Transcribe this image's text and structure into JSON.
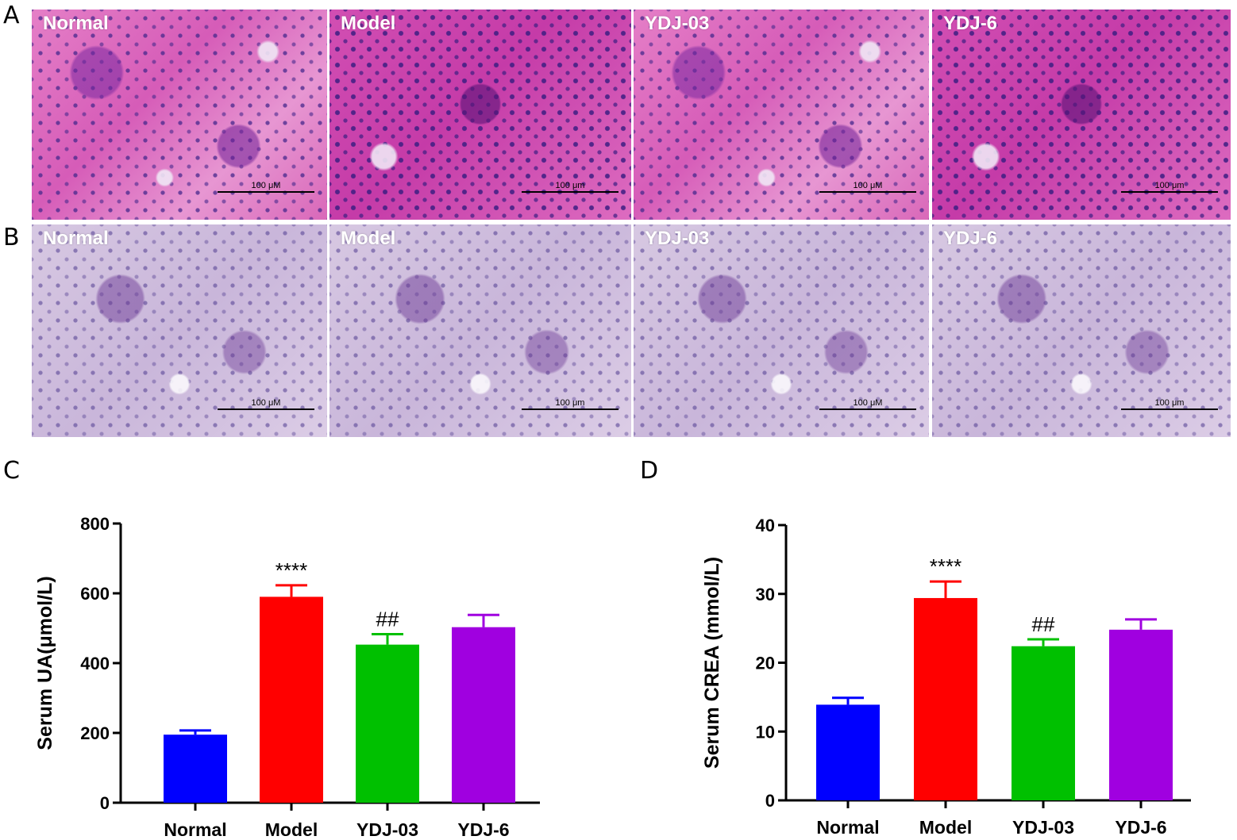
{
  "panel_letters": {
    "A": "A",
    "B": "B",
    "C": "C",
    "D": "D"
  },
  "micrographs": {
    "row_A": [
      {
        "label": "Normal",
        "scale": "100 μM"
      },
      {
        "label": "Model",
        "scale": "100 μm"
      },
      {
        "label": "YDJ-03",
        "scale": "100 μM"
      },
      {
        "label": "YDJ-6",
        "scale": "100 μm"
      }
    ],
    "row_B": [
      {
        "label": "Normal",
        "scale": "100 μM"
      },
      {
        "label": "Model",
        "scale": "100 μm"
      },
      {
        "label": "YDJ-03",
        "scale": "100 μM"
      },
      {
        "label": "YDJ-6",
        "scale": "100 μm"
      }
    ]
  },
  "colors": {
    "Normal": "#0000ff",
    "Model": "#ff0000",
    "YDJ-03": "#00c000",
    "YDJ-6": "#a000e0"
  },
  "chart_data": [
    {
      "type": "bar",
      "categories": [
        "Normal",
        "Model",
        "YDJ-03",
        "YDJ-6"
      ],
      "values": [
        195,
        590,
        453,
        503
      ],
      "errors": [
        12,
        33,
        30,
        35
      ],
      "annotations": [
        "",
        "****",
        "##",
        ""
      ],
      "ylabel": "Serum UA(μmol/L)",
      "ylim": [
        0,
        800
      ],
      "yticks": [
        0,
        200,
        400,
        600,
        800
      ]
    },
    {
      "type": "bar",
      "categories": [
        "Normal",
        "Model",
        "YDJ-03",
        "YDJ-6"
      ],
      "values": [
        13.9,
        29.4,
        22.4,
        24.8
      ],
      "errors": [
        1.0,
        2.4,
        1.0,
        1.5
      ],
      "annotations": [
        "",
        "****",
        "##",
        ""
      ],
      "ylabel": "Serum CREA (mmol/L)",
      "ylim": [
        0,
        40
      ],
      "yticks": [
        0,
        10,
        20,
        30,
        40
      ]
    }
  ]
}
